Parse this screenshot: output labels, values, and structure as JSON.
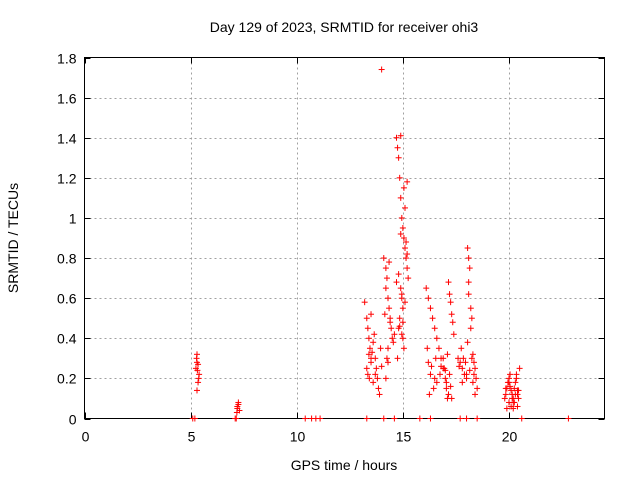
{
  "chart_data": {
    "type": "scatter",
    "title": "Day 129 of 2023, SRMTID for receiver ohi3",
    "xlabel": "GPS time / hours",
    "ylabel": "SRMTID / TECUs",
    "xlim": [
      0,
      24.5
    ],
    "ylim": [
      0,
      1.8
    ],
    "xticks": [
      0,
      5,
      10,
      15,
      20
    ],
    "xtick_labels": [
      "0",
      "5",
      "10",
      "15",
      "20"
    ],
    "yticks": [
      0,
      0.2,
      0.4,
      0.6,
      0.8,
      1.0,
      1.2,
      1.4,
      1.6,
      1.8
    ],
    "ytick_labels": [
      "0",
      "0.2",
      "0.4",
      "0.6",
      "0.8",
      "1",
      "1.2",
      "1.4",
      "1.6",
      "1.8"
    ],
    "grid": true,
    "marker": "+",
    "color": "#ff0000",
    "series": [
      {
        "name": "SRMTID",
        "x": [
          5.1,
          5.2,
          5.25,
          5.3,
          5.3,
          5.35,
          5.4,
          5.35,
          5.3,
          5.28,
          5.32,
          5.38,
          7.1,
          7.15,
          7.2,
          7.25,
          7.3,
          7.2,
          7.18,
          7.25,
          10.4,
          10.7,
          10.9,
          11.1,
          13.2,
          13.3,
          13.35,
          13.4,
          13.45,
          13.5,
          13.3,
          13.35,
          13.42,
          13.5,
          13.55,
          13.6,
          13.65,
          13.7,
          13.75,
          13.8,
          13.85,
          13.9,
          14.0,
          13.95,
          13.6,
          13.7,
          13.5,
          13.4,
          14.1,
          14.2,
          14.25,
          14.3,
          14.35,
          14.4,
          14.45,
          14.5,
          14.3,
          14.25,
          14.2,
          14.35,
          14.4,
          14.55,
          14.6,
          14.3,
          14.2,
          14.15,
          14.0,
          14.7,
          14.75,
          14.8,
          14.85,
          14.9,
          14.95,
          15.0,
          15.05,
          15.1,
          15.15,
          15.2,
          15.25,
          14.9,
          14.95,
          15.0,
          14.85,
          14.8,
          15.05,
          15.1,
          15.2,
          14.9,
          14.95,
          15.0,
          15.05,
          14.75,
          14.8,
          15.15,
          15.2,
          15.1,
          14.7,
          14.85,
          14.9,
          15.0,
          14.95,
          16.1,
          16.2,
          16.3,
          16.4,
          16.5,
          16.6,
          16.7,
          16.8,
          16.9,
          17.0,
          17.05,
          17.1,
          17.15,
          17.2,
          17.25,
          17.3,
          17.35,
          17.4,
          16.2,
          16.3,
          16.5,
          16.6,
          16.8,
          16.9,
          17.0,
          17.1,
          17.2,
          16.25,
          16.45,
          17.05,
          17.15,
          17.3,
          16.15,
          16.35,
          16.55,
          16.75,
          16.95,
          17.25,
          17.6,
          17.7,
          17.8,
          17.9,
          18.0,
          18.05,
          18.1,
          18.15,
          18.2,
          18.25,
          18.3,
          18.35,
          18.4,
          18.45,
          18.5,
          17.75,
          17.85,
          17.95,
          18.1,
          18.2,
          18.3,
          18.4,
          18.0,
          18.05,
          18.15,
          18.25,
          18.35,
          17.65,
          17.8,
          18.1,
          19.8,
          19.85,
          19.9,
          19.95,
          20.0,
          20.05,
          20.1,
          20.15,
          20.2,
          20.25,
          20.3,
          20.35,
          20.4,
          20.45,
          20.5,
          19.9,
          20.0,
          20.1,
          20.2,
          20.3,
          20.4,
          20.05,
          20.15,
          20.25,
          20.35,
          19.85,
          20.0,
          20.2,
          20.4,
          20.45,
          13.3,
          14.1,
          14.6,
          15.8,
          16.3,
          17.7,
          18.0,
          18.5,
          20.6,
          22.8
        ],
        "y": [
          0.0,
          0.0,
          0.25,
          0.28,
          0.32,
          0.27,
          0.22,
          0.18,
          0.14,
          0.3,
          0.24,
          0.2,
          0.0,
          0.0,
          0.05,
          0.08,
          0.04,
          0.06,
          0.03,
          0.07,
          0.0,
          0.0,
          0.0,
          0.0,
          0.58,
          0.5,
          0.45,
          0.4,
          0.35,
          0.3,
          0.25,
          0.22,
          0.2,
          0.28,
          0.33,
          0.38,
          0.42,
          0.3,
          0.25,
          0.2,
          0.15,
          0.12,
          1.74,
          0.35,
          0.18,
          0.22,
          0.52,
          0.32,
          0.8,
          0.75,
          0.7,
          0.6,
          0.55,
          0.5,
          0.45,
          0.4,
          0.35,
          0.3,
          0.65,
          0.78,
          0.48,
          0.38,
          0.42,
          0.28,
          0.2,
          0.52,
          0.26,
          1.4,
          1.35,
          1.3,
          1.2,
          1.1,
          1.0,
          0.95,
          0.9,
          0.85,
          0.8,
          0.75,
          0.7,
          0.65,
          0.6,
          0.55,
          0.5,
          0.45,
          1.15,
          1.05,
          1.18,
          1.41,
          0.62,
          0.4,
          0.35,
          0.3,
          0.72,
          0.88,
          0.82,
          0.58,
          0.68,
          0.46,
          0.92,
          0.48,
          0.42,
          0.65,
          0.6,
          0.55,
          0.5,
          0.45,
          0.4,
          0.35,
          0.3,
          0.25,
          0.2,
          0.15,
          0.1,
          0.68,
          0.62,
          0.58,
          0.52,
          0.48,
          0.42,
          0.28,
          0.22,
          0.2,
          0.18,
          0.26,
          0.3,
          0.24,
          0.32,
          0.22,
          0.12,
          0.15,
          0.18,
          0.12,
          0.1,
          0.35,
          0.26,
          0.3,
          0.22,
          0.25,
          0.16,
          0.3,
          0.28,
          0.25,
          0.22,
          0.2,
          0.85,
          0.8,
          0.75,
          0.55,
          0.5,
          0.32,
          0.28,
          0.25,
          0.2,
          0.15,
          0.35,
          0.3,
          0.28,
          0.62,
          0.45,
          0.18,
          0.12,
          0.22,
          0.38,
          0.24,
          0.3,
          0.22,
          0.26,
          0.18,
          0.68,
          0.1,
          0.12,
          0.15,
          0.18,
          0.2,
          0.22,
          0.14,
          0.12,
          0.1,
          0.15,
          0.18,
          0.2,
          0.12,
          0.1,
          0.25,
          0.05,
          0.08,
          0.06,
          0.08,
          0.12,
          0.14,
          0.16,
          0.1,
          0.08,
          0.22,
          0.15,
          0.18,
          0.05,
          0.06,
          0.14,
          0.0,
          0.0,
          0.0,
          0.0,
          0.0,
          0.0,
          0.0,
          0.0,
          0.0,
          0.0
        ]
      }
    ]
  }
}
